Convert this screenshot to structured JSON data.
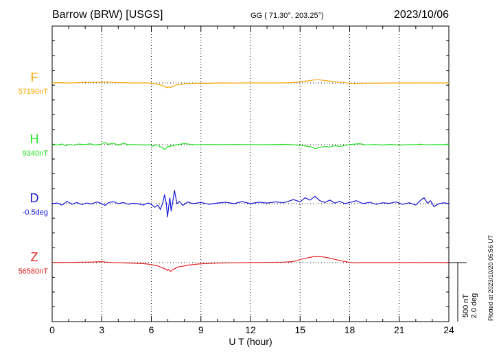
{
  "header": {
    "station": "Barrow (BRW)  [USGS]",
    "coords": "GG ( 71.30°, 203.25°)",
    "date": "2023/10/06"
  },
  "plotted_note": "Plotted at 2023/10/20 05:56 UT",
  "scale_bar": {
    "line1": "500 nT",
    "line2": "2.0 deg"
  },
  "chart_data": {
    "type": "line",
    "title": "Barrow (BRW)  [USGS]",
    "xlabel": "U T (hour)",
    "xlim": [
      0,
      24
    ],
    "xticks": [
      0,
      3,
      6,
      9,
      12,
      15,
      18,
      21,
      24
    ],
    "grid": true,
    "scale": {
      "nT_per_bar": 500,
      "deg_per_bar": 2.0
    },
    "series": [
      {
        "name": "F",
        "baseline_label": "57190nT",
        "color": "#f5a500",
        "unit": "nT",
        "baseline": 57190,
        "x": [
          0,
          0.5,
          1,
          1.5,
          2,
          2.5,
          3,
          3.3,
          3.6,
          4,
          4.5,
          5,
          5.5,
          5.8,
          6.1,
          6.4,
          6.6,
          6.8,
          6.95,
          7.05,
          7.15,
          7.3,
          7.5,
          7.7,
          8,
          8.3,
          8.7,
          9,
          9.5,
          10,
          11,
          12,
          13,
          14,
          14.5,
          14.8,
          15.1,
          15.5,
          15.8,
          16.1,
          16.4,
          16.8,
          17.2,
          17.6,
          18,
          18.3,
          18.6,
          19,
          20,
          21,
          22,
          22.5,
          23,
          23.5,
          24
        ],
        "y": [
          57190,
          57193,
          57190,
          57192,
          57196,
          57195,
          57197,
          57199,
          57197,
          57193,
          57192,
          57190,
          57191,
          57190,
          57185,
          57178,
          57170,
          57162,
          57150,
          57158,
          57152,
          57160,
          57172,
          57178,
          57182,
          57185,
          57187,
          57188,
          57187,
          57190,
          57189,
          57191,
          57190,
          57191,
          57193,
          57196,
          57202,
          57208,
          57215,
          57218,
          57212,
          57206,
          57199,
          57194,
          57187,
          57184,
          57187,
          57188,
          57189,
          57190,
          57190,
          57191,
          57190,
          57190,
          57190
        ]
      },
      {
        "name": "H",
        "baseline_label": "9340nT",
        "color": "#22e022",
        "unit": "nT",
        "baseline": 9340,
        "x": [
          0,
          0.3,
          0.6,
          0.8,
          1,
          1.3,
          1.6,
          2,
          2.3,
          2.6,
          3,
          3.2,
          3.4,
          3.7,
          4,
          4.3,
          4.6,
          5,
          5.3,
          5.6,
          5.9,
          6.1,
          6.3,
          6.5,
          6.7,
          6.85,
          7,
          7.1,
          7.2,
          7.3,
          7.45,
          7.6,
          7.8,
          8,
          8.3,
          8.6,
          9,
          9.5,
          10,
          11,
          12,
          13,
          14,
          14.5,
          14.8,
          15.1,
          15.4,
          15.7,
          15.9,
          16.2,
          16.5,
          16.8,
          17.1,
          17.4,
          17.7,
          18,
          18.3,
          18.6,
          19,
          19.5,
          20,
          20.5,
          21,
          21.5,
          22,
          22.3,
          22.6,
          23,
          23.5,
          24
        ],
        "y": [
          9340,
          9338,
          9346,
          9330,
          9342,
          9336,
          9345,
          9340,
          9348,
          9337,
          9345,
          9360,
          9343,
          9353,
          9336,
          9352,
          9340,
          9342,
          9339,
          9337,
          9340,
          9328,
          9340,
          9325,
          9312,
          9300,
          9328,
          9320,
          9335,
          9329,
          9338,
          9342,
          9345,
          9350,
          9344,
          9341,
          9340,
          9342,
          9341,
          9342,
          9341,
          9340,
          9343,
          9340,
          9337,
          9333,
          9328,
          9320,
          9307,
          9318,
          9325,
          9320,
          9332,
          9325,
          9335,
          9340,
          9345,
          9349,
          9338,
          9342,
          9337,
          9343,
          9335,
          9341,
          9340,
          9344,
          9338,
          9341,
          9340,
          9343
        ]
      },
      {
        "name": "D",
        "baseline_label": "-0.5deg",
        "color": "#1515d8",
        "unit": "deg",
        "baseline": -0.5,
        "x": [
          0,
          0.3,
          0.6,
          0.9,
          1.2,
          1.5,
          1.8,
          2.1,
          2.4,
          2.7,
          3,
          3.2,
          3.4,
          3.7,
          4,
          4.3,
          4.6,
          4.9,
          5.2,
          5.5,
          5.8,
          6,
          6.2,
          6.4,
          6.55,
          6.7,
          6.8,
          6.9,
          6.98,
          7.05,
          7.12,
          7.2,
          7.3,
          7.4,
          7.55,
          7.7,
          7.9,
          8.2,
          8.5,
          9,
          9.5,
          10,
          10.5,
          11,
          11.5,
          12,
          12.5,
          13,
          13.5,
          14,
          14.3,
          14.6,
          15,
          15.3,
          15.6,
          15.9,
          16.2,
          16.5,
          16.8,
          17.1,
          17.4,
          17.7,
          18,
          18.4,
          18.8,
          19.2,
          19.6,
          20,
          20.4,
          20.8,
          21.2,
          21.6,
          22,
          22.3,
          22.5,
          22.7,
          22.9,
          23.1,
          23.4,
          23.7,
          24
        ],
        "y": [
          -0.5,
          -0.48,
          -0.55,
          -0.42,
          -0.52,
          -0.46,
          -0.53,
          -0.48,
          -0.51,
          -0.44,
          -0.5,
          -0.56,
          -0.47,
          -0.43,
          -0.5,
          -0.46,
          -0.52,
          -0.49,
          -0.5,
          -0.55,
          -0.48,
          -0.52,
          -0.62,
          -0.55,
          -0.7,
          -0.45,
          -0.2,
          -0.48,
          -0.95,
          -0.6,
          -0.3,
          -0.75,
          -0.42,
          -0.05,
          -0.5,
          -0.42,
          -0.56,
          -0.44,
          -0.5,
          -0.46,
          -0.52,
          -0.48,
          -0.45,
          -0.5,
          -0.43,
          -0.5,
          -0.45,
          -0.48,
          -0.44,
          -0.47,
          -0.42,
          -0.36,
          -0.44,
          -0.3,
          -0.38,
          -0.25,
          -0.4,
          -0.46,
          -0.38,
          -0.48,
          -0.42,
          -0.5,
          -0.46,
          -0.4,
          -0.5,
          -0.45,
          -0.52,
          -0.47,
          -0.49,
          -0.44,
          -0.52,
          -0.47,
          -0.55,
          -0.38,
          -0.3,
          -0.48,
          -0.4,
          -0.6,
          -0.5,
          -0.47,
          -0.5
        ]
      },
      {
        "name": "Z",
        "baseline_label": "56580nT",
        "color": "#e02020",
        "unit": "nT",
        "baseline": 56580,
        "x": [
          0,
          0.5,
          1,
          1.5,
          2,
          2.5,
          3,
          3.3,
          3.6,
          4,
          4.5,
          5,
          5.5,
          5.8,
          6.1,
          6.4,
          6.6,
          6.8,
          6.95,
          7.05,
          7.15,
          7.3,
          7.5,
          7.7,
          8,
          8.3,
          8.7,
          9,
          9.5,
          10,
          11,
          12,
          13,
          14,
          14.5,
          14.8,
          15.1,
          15.5,
          15.8,
          16.1,
          16.4,
          16.8,
          17.2,
          17.6,
          18,
          18.3,
          18.6,
          19,
          20,
          21,
          22,
          22.5,
          23,
          23.5,
          24
        ],
        "y": [
          56580,
          56582,
          56581,
          56583,
          56584,
          56585,
          56588,
          56584,
          56581,
          56579,
          56577,
          56575,
          56572,
          56568,
          56560,
          56552,
          56540,
          56530,
          56515,
          56525,
          56505,
          56520,
          56535,
          56545,
          56552,
          56560,
          56566,
          56570,
          56573,
          56576,
          56578,
          56580,
          56582,
          56584,
          56588,
          56596,
          56610,
          56622,
          56630,
          56632,
          56628,
          56618,
          56605,
          56592,
          56582,
          56578,
          56580,
          56580,
          56580,
          56580,
          56581,
          56580,
          56582,
          56580,
          56580
        ]
      }
    ]
  }
}
